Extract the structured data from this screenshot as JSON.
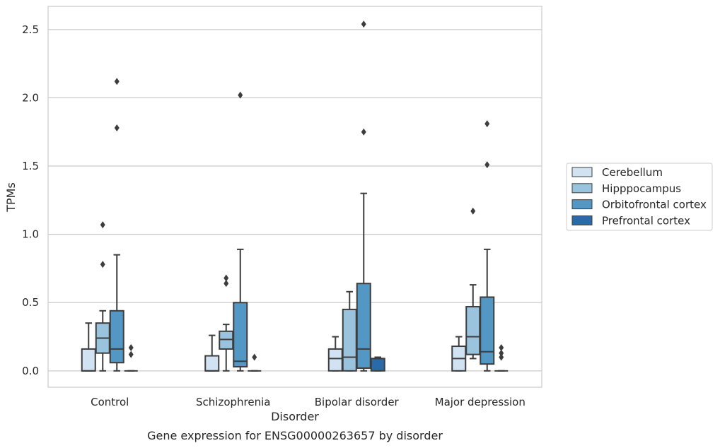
{
  "chart_data": {
    "type": "box",
    "caption": "Gene expression for ENSG00000263657 by disorder",
    "xlabel": "Disorder",
    "ylabel": "TPMs",
    "ylim": [
      -0.12,
      2.67
    ],
    "yticks": [
      "0.0",
      "0.5",
      "1.0",
      "1.5",
      "2.0",
      "2.5"
    ],
    "ytick_values": [
      0,
      0.5,
      1.0,
      1.5,
      2.0,
      2.5
    ],
    "grid": "horizontal",
    "legend_position": "right",
    "categories": [
      "Control",
      "Schizophrenia",
      "Bipolar disorder",
      "Major depression"
    ],
    "series": [
      {
        "name": "Cerebellum",
        "color": "#d1e2f2",
        "boxes": [
          {
            "whislo": 0,
            "q1": 0,
            "med": 0,
            "q3": 0.16,
            "whishi": 0.35,
            "fliers": []
          },
          {
            "whislo": 0,
            "q1": 0,
            "med": 0,
            "q3": 0.11,
            "whishi": 0.26,
            "fliers": []
          },
          {
            "whislo": 0,
            "q1": 0,
            "med": 0.09,
            "q3": 0.16,
            "whishi": 0.25,
            "fliers": []
          },
          {
            "whislo": 0,
            "q1": 0,
            "med": 0.09,
            "q3": 0.18,
            "whishi": 0.25,
            "fliers": []
          }
        ]
      },
      {
        "name": "Hipppocampus",
        "color": "#9ac3de",
        "boxes": [
          {
            "whislo": 0,
            "q1": 0.13,
            "med": 0.24,
            "q3": 0.35,
            "whishi": 0.44,
            "fliers": [
              0.78,
              1.07
            ]
          },
          {
            "whislo": 0,
            "q1": 0.16,
            "med": 0.23,
            "q3": 0.29,
            "whishi": 0.34,
            "fliers": [
              0.64,
              0.68
            ]
          },
          {
            "whislo": 0,
            "q1": 0,
            "med": 0.1,
            "q3": 0.45,
            "whishi": 0.58,
            "fliers": []
          },
          {
            "whislo": 0.09,
            "q1": 0.12,
            "med": 0.25,
            "q3": 0.47,
            "whishi": 0.63,
            "fliers": [
              1.17
            ]
          }
        ]
      },
      {
        "name": "Orbitofrontal cortex",
        "color": "#5397c4",
        "boxes": [
          {
            "whislo": 0,
            "q1": 0.06,
            "med": 0.16,
            "q3": 0.44,
            "whishi": 0.85,
            "fliers": [
              1.78,
              2.12
            ]
          },
          {
            "whislo": 0,
            "q1": 0.03,
            "med": 0.07,
            "q3": 0.5,
            "whishi": 0.89,
            "fliers": [
              2.02
            ]
          },
          {
            "whislo": 0,
            "q1": 0.02,
            "med": 0.16,
            "q3": 0.64,
            "whishi": 1.3,
            "fliers": [
              1.75,
              2.54
            ]
          },
          {
            "whislo": 0,
            "q1": 0.05,
            "med": 0.14,
            "q3": 0.54,
            "whishi": 0.89,
            "fliers": [
              1.51,
              1.81
            ]
          }
        ]
      },
      {
        "name": "Prefrontal cortex",
        "color": "#2b6aa8",
        "boxes": [
          {
            "whislo": 0,
            "q1": 0,
            "med": 0,
            "q3": 0,
            "whishi": 0,
            "fliers": [
              0.12,
              0.17
            ]
          },
          {
            "whislo": 0,
            "q1": 0,
            "med": 0,
            "q3": 0,
            "whishi": 0,
            "fliers": [
              0.1
            ]
          },
          {
            "whislo": 0,
            "q1": 0,
            "med": 0.09,
            "q3": 0.09,
            "whishi": 0.1,
            "fliers": []
          },
          {
            "whislo": 0,
            "q1": 0,
            "med": 0,
            "q3": 0,
            "whishi": 0,
            "fliers": [
              0.1,
              0.13,
              0.17
            ]
          }
        ]
      }
    ]
  }
}
